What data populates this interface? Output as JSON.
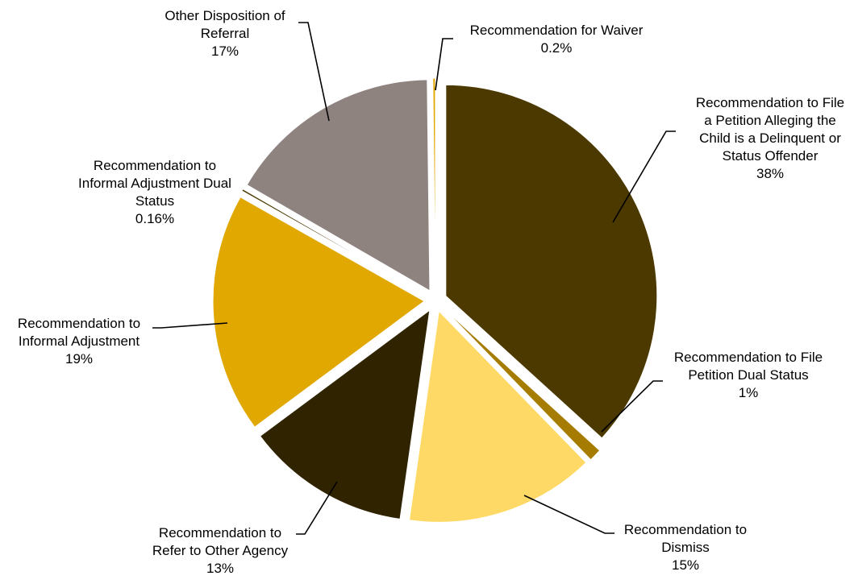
{
  "chart_data": {
    "type": "pie",
    "title": "",
    "legend": "none",
    "start_angle_deg": 0,
    "direction": "clockwise",
    "slices": [
      {
        "label_lines": [
          "Recommendation to File",
          "a Petition Alleging the",
          "Child is a Delinquent or",
          "Status Offender"
        ],
        "percent_label": "38%",
        "value": 38,
        "color": "#4c3900"
      },
      {
        "label_lines": [
          "Recommendation to File",
          "Petition Dual Status"
        ],
        "percent_label": "1%",
        "value": 1,
        "color": "#a67c00"
      },
      {
        "label_lines": [
          "Recommendation to",
          "Dismiss"
        ],
        "percent_label": "15%",
        "value": 15,
        "color": "#ffd966"
      },
      {
        "label_lines": [
          "Recommendation to",
          "Refer to Other Agency"
        ],
        "percent_label": "13%",
        "value": 13,
        "color": "#302300"
      },
      {
        "label_lines": [
          "Recommendation to",
          "Informal Adjustment"
        ],
        "percent_label": "19%",
        "value": 19,
        "color": "#e0a800"
      },
      {
        "label_lines": [
          "Recommendation to",
          "Informal Adjustment Dual",
          "Status"
        ],
        "percent_label": "0.16%",
        "value": 0.16,
        "color": "#4c3900"
      },
      {
        "label_lines": [
          "Other Disposition of",
          "Referral"
        ],
        "percent_label": "17%",
        "value": 17,
        "color": "#8f8380"
      },
      {
        "label_lines": [
          "Recommendation for Waiver"
        ],
        "percent_label": "0.2%",
        "value": 0.2,
        "color": "#e0a800"
      }
    ]
  }
}
